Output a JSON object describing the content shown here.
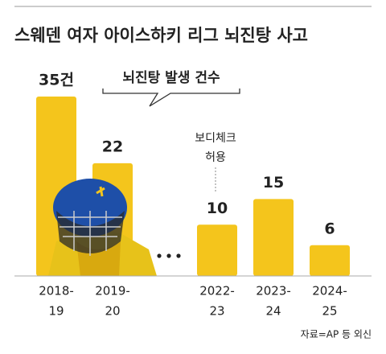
{
  "chart_data": {
    "type": "bar",
    "title": "스웨덴 여자 아이스하키 리그 뇌진탕 사고",
    "subtitle": "뇌진탕 발생 건수",
    "categories": [
      [
        "2018-",
        "19"
      ],
      [
        "2019-",
        "20"
      ],
      [
        "2022-",
        "23"
      ],
      [
        "2023-",
        "24"
      ],
      [
        "2024-",
        "25"
      ]
    ],
    "values": [
      35,
      22,
      10,
      15,
      6
    ],
    "value_labels": [
      "35건",
      "22",
      "10",
      "15",
      "6"
    ],
    "color": "#f4c51c",
    "annotation": [
      "보디체크",
      "허용"
    ],
    "source": "자료=AP 등 외신"
  }
}
